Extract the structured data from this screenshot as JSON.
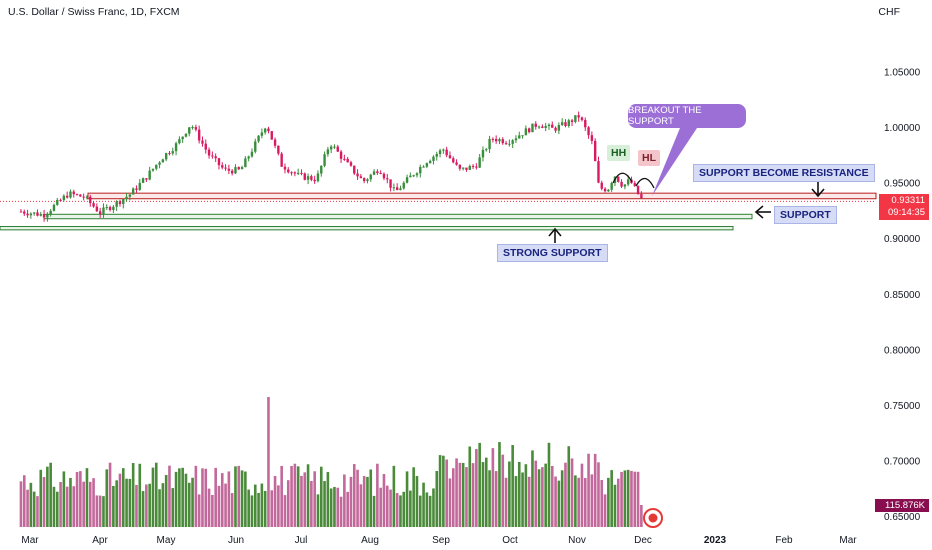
{
  "header": {
    "title": "U.S. Dollar / Swiss Franc, 1D, FXCM",
    "currency": "CHF"
  },
  "price_badge": {
    "price": "0.93311",
    "countdown": "09:14:35",
    "color": "#f23645"
  },
  "volume_badge": {
    "value": "115.876K",
    "color": "#880e4f"
  },
  "annotations": {
    "breakout": "BREAKOUT THE SUPPORT",
    "hh": "HH",
    "hl": "HL",
    "support_resistance": "SUPPORT BECOME RESISTANCE",
    "support": "SUPPORT",
    "strong_support": "STRONG SUPPORT"
  },
  "colors": {
    "up": "#388e3c",
    "down": "#d81b60",
    "vol_up": "#4a8a3a",
    "vol_down": "#c2689a",
    "zone_red": "#b71c1c",
    "zone_green": "#2e7d32",
    "bubble": "#9c6fd6"
  },
  "chart_data": {
    "type": "candlestick",
    "title": "U.S. Dollar / Swiss Franc, 1D, FXCM",
    "ylabel": "CHF",
    "ylim": [
      0.645,
      1.0625
    ],
    "y_ticks": [
      "1.05000",
      "1.00000",
      "0.95000",
      "0.90000",
      "0.85000",
      "0.80000",
      "0.75000",
      "0.70000",
      "0.65000"
    ],
    "x_ticks": [
      "Mar",
      "Apr",
      "May",
      "Jun",
      "Jul",
      "Aug",
      "Sep",
      "Oct",
      "Nov",
      "Dec",
      "2023",
      "Feb",
      "Mar"
    ],
    "last_price": 0.93311,
    "levels": [
      {
        "name": "SUPPORT BECOME RESISTANCE",
        "low": 0.9355,
        "high": 0.9405
      },
      {
        "name": "SUPPORT",
        "low": 0.9175,
        "high": 0.9215
      },
      {
        "name": "STRONG SUPPORT",
        "low": 0.9075,
        "high": 0.9105
      }
    ],
    "price_path": [
      [
        "2022-02-25",
        0.924
      ],
      [
        "2022-03-07",
        0.921
      ],
      [
        "2022-03-18",
        0.94
      ],
      [
        "2022-03-25",
        0.937
      ],
      [
        "2022-04-01",
        0.923
      ],
      [
        "2022-04-08",
        0.931
      ],
      [
        "2022-04-15",
        0.94
      ],
      [
        "2022-04-22",
        0.955
      ],
      [
        "2022-04-29",
        0.972
      ],
      [
        "2022-05-06",
        0.985
      ],
      [
        "2022-05-12",
        1.003
      ],
      [
        "2022-05-20",
        0.975
      ],
      [
        "2022-05-27",
        0.961
      ],
      [
        "2022-06-03",
        0.961
      ],
      [
        "2022-06-10",
        0.985
      ],
      [
        "2022-06-15",
        1.003
      ],
      [
        "2022-06-22",
        0.966
      ],
      [
        "2022-06-30",
        0.956
      ],
      [
        "2022-07-08",
        0.953
      ],
      [
        "2022-07-14",
        0.986
      ],
      [
        "2022-07-22",
        0.966
      ],
      [
        "2022-07-29",
        0.951
      ],
      [
        "2022-08-05",
        0.963
      ],
      [
        "2022-08-12",
        0.941
      ],
      [
        "2022-08-19",
        0.956
      ],
      [
        "2022-08-26",
        0.97
      ],
      [
        "2022-09-02",
        0.98
      ],
      [
        "2022-09-09",
        0.961
      ],
      [
        "2022-09-16",
        0.965
      ],
      [
        "2022-09-23",
        0.99
      ],
      [
        "2022-09-30",
        0.987
      ],
      [
        "2022-10-07",
        0.995
      ],
      [
        "2022-10-14",
        1.003
      ],
      [
        "2022-10-21",
        0.998
      ],
      [
        "2022-10-28",
        1.004
      ],
      [
        "2022-11-02",
        1.01
      ],
      [
        "2022-11-08",
        0.985
      ],
      [
        "2022-11-11",
        0.945
      ],
      [
        "2022-11-15",
        0.944
      ],
      [
        "2022-11-18",
        0.957
      ],
      [
        "2022-11-22",
        0.947
      ],
      [
        "2022-11-25",
        0.952
      ],
      [
        "2022-11-29",
        0.939
      ],
      [
        "2022-12-01",
        0.933
      ]
    ],
    "volume_scale_ticks": [
      "115.876K"
    ]
  }
}
